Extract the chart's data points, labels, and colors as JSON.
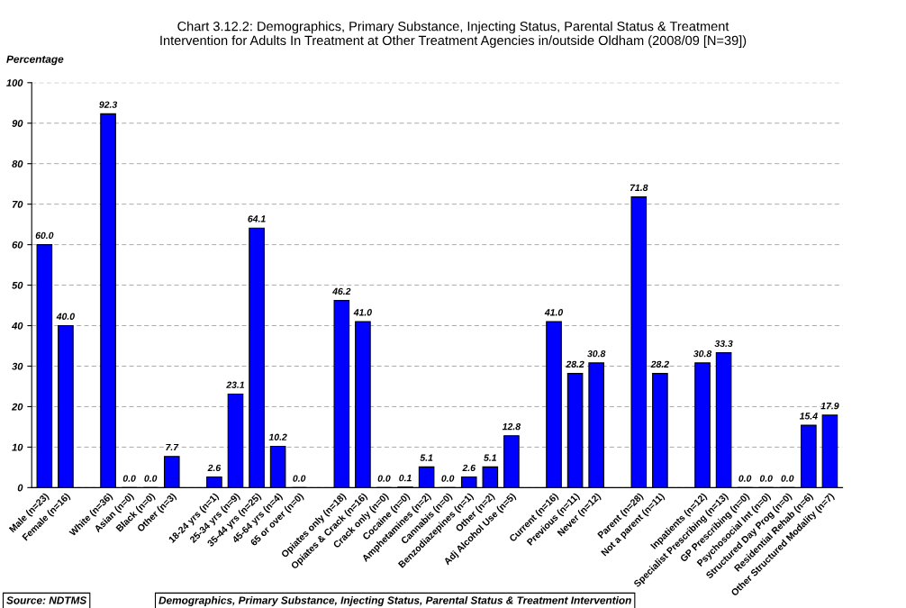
{
  "chart_data": {
    "type": "bar",
    "title": "Chart 3.12.2: Demographics, Primary Substance, Injecting Status, Parental Status & Treatment\nIntervention for Adults In Treatment at Other Treatment Agencies in/outside Oldham (2008/09 [N=39])",
    "ylabel": "Percentage",
    "categories": [
      "Male (n=23)",
      "Female (n=16)",
      null,
      "White (n=36)",
      "Asian (n=0)",
      "Black (n=0)",
      "Other (n=3)",
      null,
      "18-24 yrs (n=1)",
      "25-34 yrs (n=9)",
      "35-44 yrs (n=25)",
      "45-64 yrs (n=4)",
      "65 or over (n=0)",
      null,
      "Opiates only (n=18)",
      "Opiates & Crack (n=16)",
      "Crack only (n=0)",
      "Cocaine (n=0)",
      "Amphetamines (n=2)",
      "Cannabis (n=0)",
      "Benzodiazepines (n=1)",
      "Other (n=2)",
      "Adj Alcohol Use (n=5)",
      null,
      "Current (n=16)",
      "Previous (n=11)",
      "Never (n=12)",
      null,
      "Parent (n=28)",
      "Not a parent (n=11)",
      null,
      "Inpatients (n=12)",
      "Specialist Prescribing (n=13)",
      "GP Prescribing (n=0)",
      "Psychosocial Int (n=0)",
      "Structured Day Prog (n=0)",
      "Residential Rehab (n=6)",
      "Other Structured Modality (n=7)"
    ],
    "values": [
      60.0,
      40.0,
      null,
      92.3,
      0.0,
      0.0,
      7.7,
      null,
      2.6,
      23.1,
      64.1,
      10.2,
      0.0,
      null,
      46.2,
      41.0,
      0.0,
      0.1,
      5.1,
      0.0,
      2.6,
      5.1,
      12.8,
      null,
      41.0,
      28.2,
      30.8,
      null,
      71.8,
      28.2,
      null,
      30.8,
      33.3,
      0.0,
      0.0,
      0.0,
      15.4,
      17.9
    ],
    "value_labels": [
      "60.0",
      "40.0",
      null,
      "92.3",
      "0.0",
      "0.0",
      "7.7",
      null,
      "2.6",
      "23.1",
      "64.1",
      "10.2",
      "0.0",
      null,
      "46.2",
      "41.0",
      "0.0",
      "0.1",
      "5.1",
      "0.0",
      "2.6",
      "5.1",
      "12.8",
      null,
      "41.0",
      "28.2",
      "30.8",
      null,
      "71.8",
      "28.2",
      null,
      "30.8",
      "33.3",
      "0.0",
      "0.0",
      "0.0",
      "15.4",
      "17.9"
    ],
    "color": "#0000ff",
    "ylim": [
      0,
      100
    ],
    "yticks": [
      0,
      10,
      20,
      30,
      40,
      50,
      60,
      70,
      80,
      90,
      100
    ],
    "grid": "y",
    "annotations": [
      "Source: NDTMS",
      "Demographics, Primary Substance, Injecting Status, Parental Status & Treatment Intervention"
    ]
  }
}
